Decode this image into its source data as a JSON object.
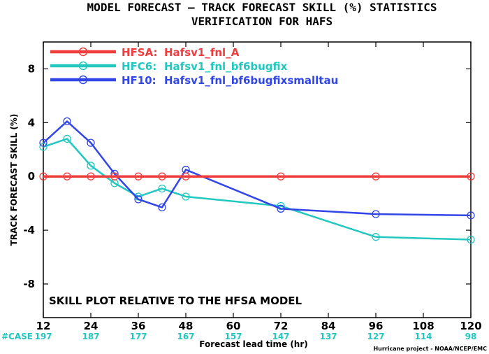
{
  "chart_data": {
    "type": "line",
    "title": "MODEL FORECAST — TRACK FORECAST SKILL (%) STATISTICS",
    "subtitle": "VERIFICATION FOR HAFS",
    "xlabel": "Forecast lead time (hr)",
    "ylabel": "TRACK FORECAST SKILL (%)",
    "xlim": [
      12,
      120
    ],
    "ylim": [
      -10.5,
      10
    ],
    "x_ticks": [
      "12",
      "24",
      "36",
      "48",
      "60",
      "72",
      "84",
      "96",
      "108",
      "120"
    ],
    "y_ticks": [
      "8",
      "4",
      "0",
      "-4",
      "-8"
    ],
    "grid": false,
    "legend_position": "top-left",
    "annotation": "SKILL PLOT RELATIVE TO THE HFSA MODEL",
    "cases_label": "#CASE",
    "cases": [
      "197",
      "187",
      "177",
      "167",
      "157",
      "147",
      "137",
      "127",
      "114",
      "98"
    ],
    "credit": "Hurricane project - NOAA/NCEP/EMC",
    "series": [
      {
        "name": "HFSA:",
        "label": "Hafsv1_fnl_A",
        "color": "#f03c3c",
        "x": [
          12,
          18,
          24,
          30,
          36,
          42,
          48,
          72,
          96,
          120
        ],
        "y": [
          0,
          0,
          0,
          0,
          0,
          0,
          0,
          0,
          0,
          0
        ]
      },
      {
        "name": "HFC6:",
        "label": "Hafsv1_fnl_bf6bugfix",
        "color": "#22c8c0",
        "x": [
          12,
          18,
          24,
          30,
          36,
          42,
          48,
          72,
          96,
          120
        ],
        "y": [
          2.2,
          2.8,
          0.8,
          -0.5,
          -1.5,
          -0.9,
          -1.5,
          -2.2,
          -4.5,
          -4.7
        ]
      },
      {
        "name": "HF10:",
        "label": "Hafsv1_fnl_bf6bugfixsmalltau",
        "color": "#3246e8",
        "x": [
          12,
          18,
          24,
          30,
          36,
          42,
          48,
          72,
          96,
          120
        ],
        "y": [
          2.5,
          4.1,
          2.5,
          0.2,
          -1.7,
          -2.3,
          0.5,
          -2.4,
          -2.8,
          -2.9
        ]
      }
    ]
  }
}
